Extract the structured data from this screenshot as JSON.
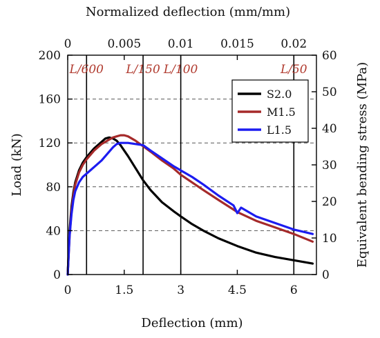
{
  "chart_data": {
    "type": "line",
    "xlabel": "Deflection (mm)",
    "ylabel": "Load (kN)",
    "x2label": "Normalized deflection (mm/mm)",
    "y2label": "Equivalent bending stress (MPa)",
    "xlim": [
      0,
      6.6
    ],
    "ylim": [
      0,
      200
    ],
    "x2lim": [
      0,
      0.022
    ],
    "y2lim": [
      0,
      60
    ],
    "xticks": [
      "0",
      "1.5",
      "3",
      "4.5",
      "6"
    ],
    "xtick_values": [
      0,
      1.5,
      3,
      4.5,
      6
    ],
    "yticks": [
      "0",
      "40",
      "80",
      "120",
      "160",
      "200"
    ],
    "ytick_values": [
      0,
      40,
      80,
      120,
      160,
      200
    ],
    "x2ticks": [
      "0",
      "0.005",
      "0.01",
      "0.015",
      "0.02"
    ],
    "x2tick_values": [
      0,
      0.005,
      0.01,
      0.015,
      0.02
    ],
    "y2ticks": [
      "0",
      "10",
      "20",
      "30",
      "40",
      "50",
      "60"
    ],
    "y2tick_values": [
      0,
      10,
      20,
      30,
      40,
      50,
      60
    ],
    "grid": true,
    "legend_position": "top-right",
    "reference_lines": [
      {
        "label": "L/600",
        "x": 0.5
      },
      {
        "label": "L/150",
        "x": 2.0
      },
      {
        "label": "L/100",
        "x": 3.0
      },
      {
        "label": "L/50",
        "x": 6.0
      }
    ],
    "series": [
      {
        "name": "S2.0",
        "color": "#000000",
        "x": [
          0,
          0.05,
          0.1,
          0.15,
          0.2,
          0.3,
          0.4,
          0.5,
          0.6,
          0.7,
          0.8,
          0.9,
          1.0,
          1.1,
          1.2,
          1.3,
          1.4,
          1.5,
          1.6,
          1.8,
          2.0,
          2.2,
          2.5,
          2.8,
          3.0,
          3.3,
          3.6,
          4.0,
          4.5,
          5.0,
          5.5,
          6.0,
          6.5
        ],
        "y": [
          0,
          40,
          62,
          75,
          84,
          95,
          102,
          107,
          111,
          115,
          118,
          121,
          124,
          125,
          124,
          122,
          118,
          113,
          108,
          97,
          86,
          77,
          66,
          58,
          53,
          46,
          40,
          33,
          26,
          20,
          16,
          13,
          10
        ]
      },
      {
        "name": "M1.5",
        "color": "#a52a2a",
        "x": [
          0,
          0.05,
          0.1,
          0.15,
          0.2,
          0.3,
          0.4,
          0.5,
          0.6,
          0.7,
          0.8,
          0.9,
          1.0,
          1.1,
          1.2,
          1.3,
          1.4,
          1.5,
          1.6,
          1.7,
          1.8,
          2.0,
          2.2,
          2.5,
          2.8,
          3.0,
          3.3,
          3.6,
          4.0,
          4.5,
          5.0,
          5.5,
          6.0,
          6.5
        ],
        "y": [
          0,
          35,
          58,
          72,
          82,
          93,
          100,
          105,
          109,
          113,
          116,
          119,
          121,
          123,
          125,
          126,
          127,
          127,
          126,
          124,
          122,
          117,
          112,
          104,
          97,
          91,
          84,
          77,
          68,
          57,
          49,
          43,
          37,
          30
        ]
      },
      {
        "name": "L1.5",
        "color": "#1c1cf0",
        "x": [
          0,
          0.05,
          0.1,
          0.15,
          0.2,
          0.3,
          0.4,
          0.5,
          0.6,
          0.7,
          0.8,
          0.9,
          1.0,
          1.1,
          1.2,
          1.3,
          1.4,
          1.5,
          1.6,
          1.8,
          2.0,
          2.2,
          2.5,
          2.8,
          3.0,
          3.3,
          3.6,
          4.0,
          4.4,
          4.5,
          4.6,
          5.0,
          5.5,
          6.0,
          6.5
        ],
        "y": [
          0,
          35,
          55,
          68,
          76,
          84,
          89,
          92,
          95,
          98,
          101,
          104,
          108,
          112,
          116,
          119,
          120,
          120,
          120,
          119,
          118,
          113,
          106,
          99,
          95,
          89,
          82,
          72,
          63,
          56,
          61,
          53,
          47,
          41,
          37
        ]
      }
    ]
  }
}
